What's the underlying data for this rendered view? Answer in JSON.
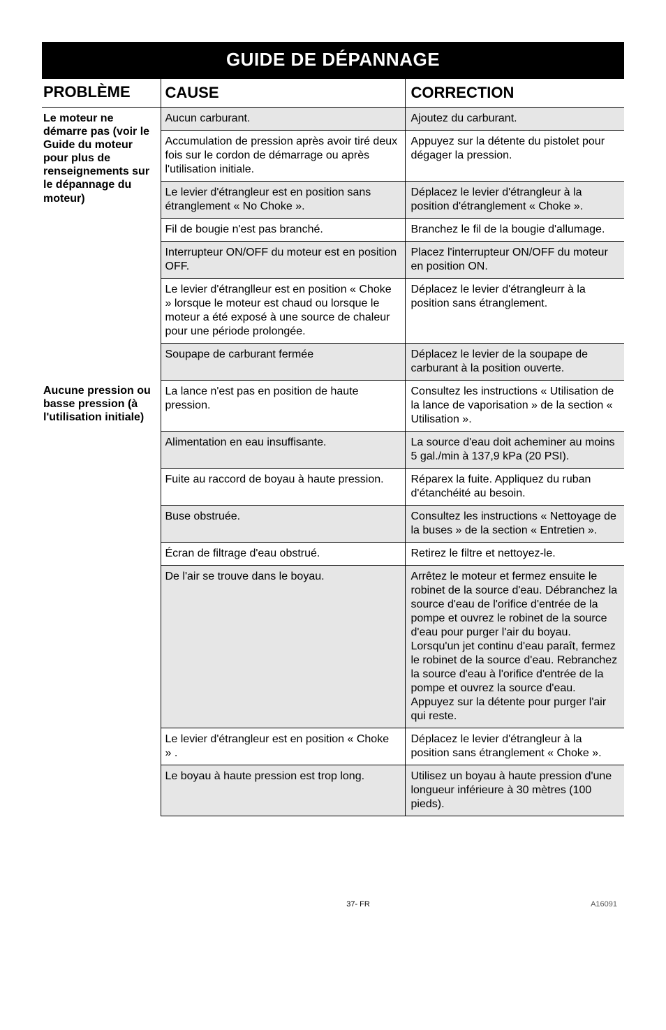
{
  "title": "GUIDE DE DÉPANNAGE",
  "headers": {
    "probleme": "PROBLÈME",
    "cause": "CAUSE",
    "correction": "CORRECTION"
  },
  "p1": {
    "label": "Le moteur ne démarre pas (voir le Guide du moteur pour plus de renseignements sur le dépannage du moteur)",
    "rows": [
      {
        "cause": "Aucun carburant.",
        "corr": "Ajoutez du carburant.",
        "shade": true
      },
      {
        "cause": "Accumulation de pression après avoir tiré deux fois sur le cordon de démarrage ou après l'utilisation initiale.",
        "corr": "Appuyez sur la détente du pistolet pour dégager la pression."
      },
      {
        "cause": "Le levier d'étrangleur est en position sans étranglement « No Choke ».",
        "corr": "Déplacez le levier d'étrangleur à la position d'étranglement « Choke ».",
        "shade": true
      },
      {
        "cause": "Fil de bougie n'est pas branché.",
        "corr": "Branchez le fil de la bougie d'allumage."
      },
      {
        "cause": "Interrupteur ON/OFF du moteur est en position OFF.",
        "corr": "Placez l'interrupteur ON/OFF du moteur en position ON.",
        "shade": true
      },
      {
        "cause": "Le levier d'étranglleur est en position « Choke »  lorsque le moteur est chaud ou lorsque le moteur a été exposé à une source de chaleur pour une période prolongée.",
        "corr": "Déplacez le levier d'étrangleurr à la position sans étranglement."
      },
      {
        "cause": "Soupape de carburant fermée",
        "corr": "Déplacez le levier de la soupape de carburant à la position ouverte.",
        "shade": true
      }
    ]
  },
  "p2": {
    "label": "Aucune pression ou basse pression (à l'utilisation initiale)",
    "rows": [
      {
        "cause": "La lance n'est pas en position de haute pression.",
        "corr": "Consultez les instructions « Utilisation de la lance de vaporisation » de la section « Utilisation »."
      },
      {
        "cause": "Alimentation en eau insuffisante.",
        "corr": "La source d'eau doit acheminer au moins 5 gal./min à 137,9 kPa (20 PSI).",
        "shade": true
      },
      {
        "cause": "Fuite au raccord de boyau à haute pression.",
        "corr": "Réparex la fuite. Appliquez du ruban d'étanchéité au besoin."
      },
      {
        "cause": "Buse obstruée.",
        "corr": "Consultez les instructions « Nettoyage de la buses » de la section « Entretien ».",
        "shade": true
      },
      {
        "cause": "Écran de filtrage d'eau obstrué.",
        "corr": "Retirez le filtre et nettoyez-le."
      },
      {
        "cause": "De l'air se trouve dans le boyau.",
        "corr": "Arrêtez le moteur et fermez ensuite le robinet de la source d'eau. Débranchez la source d'eau de l'orifice d'entrée de la pompe et ouvrez le robinet de la source d'eau pour purger l'air du boyau. Lorsqu'un jet continu d'eau paraît, fermez le robinet de la source d'eau. Rebranchez la source d'eau à l'orifice d'entrée de la pompe et ouvrez la source d'eau. Appuyez sur la détente pour purger l'air qui reste.",
        "shade": true
      },
      {
        "cause": "Le levier d'étrangleur est en position « Choke » .",
        "corr": "Déplacez le levier d'étrangleur à la position sans étranglement « Choke »."
      },
      {
        "cause": "Le boyau à haute pression est trop long.",
        "corr": "Utilisez un boyau à haute pression d'une longueur inférieure à 30 mètres (100 pieds).",
        "shade": true
      }
    ]
  },
  "footer": {
    "page": "37- FR",
    "code": "A16091"
  }
}
